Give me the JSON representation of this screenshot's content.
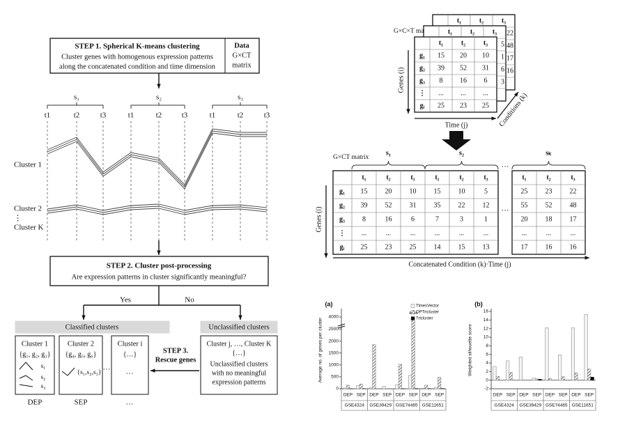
{
  "step1": {
    "title": "STEP 1. Spherical K-means clustering",
    "lines": [
      "Cluster genes with homogenous expression patterns",
      "along the concatenated condition and time dimension"
    ],
    "data_lines": [
      "Data",
      "G×CT",
      "matrix"
    ]
  },
  "timeline": {
    "conditions": [
      "s₁",
      "s₂",
      "s₃"
    ],
    "times": [
      "t1",
      "t2",
      "t3"
    ]
  },
  "clusters": [
    "Cluster 1",
    "Cluster 2",
    "⋮",
    "Cluster K"
  ],
  "step2": {
    "title": "STEP 2. Cluster post-processing",
    "question": "Are expression patterns in cluster significantly meaningful?"
  },
  "branches": [
    "Yes",
    "No"
  ],
  "classified": {
    "header": "Classified clusters",
    "boxes": [
      {
        "title": "Cluster 1",
        "genes": "{g₁, g₂, g₃}",
        "patterns": [
          "s₁",
          "s₂",
          "s₃"
        ]
      },
      {
        "title": "Cluster 2",
        "genes": "{g₄, g₅, g₆}",
        "patterns": [
          "{s₁,s₂,s₃}"
        ]
      },
      {
        "title": "Cluster i",
        "genes": "{…}",
        "patterns": [
          "…"
        ]
      }
    ],
    "ellipsis": "…",
    "footers": [
      "DEP",
      "SEP",
      "…"
    ]
  },
  "unclassified": {
    "header": "Unclassified clusters",
    "title": "Cluster j, …, Cluster K",
    "genes": "{…}",
    "lines": [
      "Unclassified clusters",
      "with no meaningful",
      "expression patterns"
    ]
  },
  "step3": [
    "STEP 3.",
    "Rescue genes"
  ],
  "tensor": {
    "title": "G×C×T matrix",
    "columns": [
      "t₁",
      "t₂",
      "t₃"
    ],
    "rows": [
      "g₁",
      "g₂",
      "g₃",
      "⋮",
      "gᵢ"
    ],
    "values": [
      [
        15,
        20,
        10
      ],
      [
        39,
        52,
        31
      ],
      [
        8,
        16,
        6
      ],
      [
        "...",
        "...",
        "..."
      ],
      [
        25,
        23,
        25
      ]
    ],
    "back_columns": [
      [
        5,
        1,
        6,
        3
      ],
      [
        22,
        48,
        17,
        16
      ]
    ],
    "axes": [
      "Genes (i)",
      "Time (j)",
      "Conditions (k)"
    ]
  },
  "concat": {
    "title": "G×CT matrix",
    "groups": [
      "s₁",
      "s₂",
      "sₖ"
    ],
    "ellipsis": "…",
    "columns": [
      "t₁",
      "t₂",
      "t₃"
    ],
    "rows": [
      "g₁",
      "g₂",
      "g₃",
      "⋮",
      "gᵢ"
    ],
    "values": [
      [
        15,
        20,
        10,
        15,
        10,
        5,
        25,
        23,
        22
      ],
      [
        39,
        52,
        31,
        35,
        22,
        12,
        55,
        52,
        48
      ],
      [
        8,
        16,
        6,
        7,
        3,
        1,
        20,
        18,
        17
      ],
      [
        "...",
        "...",
        "...",
        "...",
        "...",
        "...",
        "...",
        "...",
        "..."
      ],
      [
        25,
        23,
        25,
        14,
        15,
        13,
        17,
        16,
        16
      ]
    ],
    "axes": [
      "Genes (i)",
      "Concatenated Condition (k)·Time (j)"
    ]
  },
  "chart_data": [
    {
      "type": "bar",
      "panel": "(a)",
      "ylabel": "Average no. of genes per cluster",
      "categories": [
        "DEP",
        "SEP",
        "DEP",
        "SEP",
        "DEP",
        "SEP",
        "DEP",
        "SEP"
      ],
      "groups": [
        "GSE4324",
        "GSE39429",
        "GSE74465",
        "GSE11651"
      ],
      "series": [
        {
          "name": "TimesVector",
          "color": "#f4f4f4",
          "values": [
            30,
            130,
            40,
            100,
            170,
            560,
            20,
            60
          ]
        },
        {
          "name": "OPTricluster",
          "color": "#555555",
          "pattern": "hatch",
          "values": [
            150,
            200,
            1850,
            0,
            1030,
            4004,
            150,
            480
          ],
          "value_labels": [
            null,
            null,
            null,
            null,
            null,
            "4004",
            null,
            null
          ]
        },
        {
          "name": "Tricluster",
          "color": "#000000",
          "values": [
            5,
            5,
            0,
            0,
            5,
            10,
            5,
            10
          ]
        }
      ],
      "ylim": [
        0,
        4100
      ],
      "yticks": [
        0,
        500,
        1000,
        1500,
        2000,
        2500,
        4000
      ],
      "broken_axis": true,
      "legend": "upper right"
    },
    {
      "type": "bar",
      "panel": "(b)",
      "ylabel": "Weighted silhouette score",
      "categories": [
        "DEP",
        "SEP",
        "DEP",
        "SEP",
        "DEP",
        "SEP",
        "DEP",
        "SEP"
      ],
      "groups": [
        "GSE4324",
        "GSE39429",
        "GSE74465",
        "GSE11651"
      ],
      "series": [
        {
          "name": "TimesVector",
          "color": "#f4f4f4",
          "values": [
            3.2,
            4.5,
            5.4,
            0.5,
            12.2,
            5.9,
            12.2,
            15.3
          ]
        },
        {
          "name": "OPTricluster",
          "color": "#555555",
          "pattern": "hatch",
          "values": [
            0.9,
            1.8,
            0,
            0.3,
            0.4,
            0.8,
            1.7,
            2.6
          ]
        },
        {
          "name": "Tricluster",
          "color": "#000000",
          "values": [
            0,
            0,
            0,
            0.2,
            0,
            0,
            0,
            0.7
          ]
        }
      ],
      "ylim": [
        -2,
        16
      ],
      "yticks": [
        -2,
        0,
        2,
        4,
        6,
        8,
        10,
        12,
        14,
        16
      ]
    }
  ]
}
